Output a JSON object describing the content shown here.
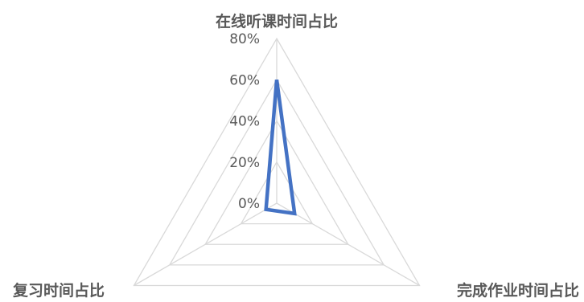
{
  "chart_data": {
    "type": "radar",
    "axes": [
      "在线听课时间占比",
      "完成作业时间占比",
      "复习时间占比"
    ],
    "ticks": [
      "0%",
      "20%",
      "40%",
      "60%",
      "80%"
    ],
    "rlim": [
      0,
      0.8
    ],
    "grid": true,
    "legend": "none",
    "series": [
      {
        "values": [
          0.6,
          0.1,
          0.06
        ],
        "color": "#4472c4"
      }
    ]
  }
}
